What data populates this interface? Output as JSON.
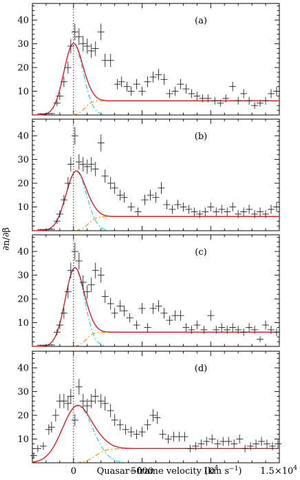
{
  "chart_data": {
    "type": "scatter",
    "x_label": "Quasar−frame velocity (km s",
    "x_label_sup": "−1",
    "x_label_close": ")",
    "y_label": "∂n/∂β",
    "x_range": [
      -3000,
      15000
    ],
    "y_range": [
      0,
      47
    ],
    "x_ticks": [
      {
        "value": 0,
        "label": "0"
      },
      {
        "value": 5000,
        "label": "5000"
      },
      {
        "value": 10000,
        "label": "10",
        "sup": "4"
      },
      {
        "value": 15000,
        "label": "1.5×10",
        "sup": "4"
      }
    ],
    "y_ticks": [
      10,
      20,
      30,
      40
    ],
    "colors": {
      "points": "#222222",
      "total_model": "#e41a1c",
      "gaussian": "#2ad4e6",
      "continuum": "#e8a010"
    },
    "panels": [
      {
        "label": "(a)",
        "model": {
          "amp": 30,
          "center": 0,
          "sigma": 700,
          "baseline": 6
        },
        "points": [
          {
            "x": -2400,
            "y": 0.5,
            "e": 0.3
          },
          {
            "x": -2000,
            "y": 0.5,
            "e": 0.3
          },
          {
            "x": -1600,
            "y": 0.6,
            "e": 0.3
          },
          {
            "x": -1200,
            "y": 5,
            "e": 1.2
          },
          {
            "x": -1000,
            "y": 8,
            "e": 1.6
          },
          {
            "x": -700,
            "y": 14,
            "e": 2.2
          },
          {
            "x": -400,
            "y": 20,
            "e": 2.6
          },
          {
            "x": -200,
            "y": 29,
            "e": 3.0
          },
          {
            "x": 100,
            "y": 35,
            "e": 3.5
          },
          {
            "x": 400,
            "y": 33,
            "e": 3.5
          },
          {
            "x": 700,
            "y": 30,
            "e": 3.3
          },
          {
            "x": 1000,
            "y": 29,
            "e": 3.2
          },
          {
            "x": 1300,
            "y": 27,
            "e": 3.0
          },
          {
            "x": 1600,
            "y": 28,
            "e": 3.1
          },
          {
            "x": 2000,
            "y": 35,
            "e": 3.5
          },
          {
            "x": 2300,
            "y": 23,
            "e": 2.8
          },
          {
            "x": 2700,
            "y": 23,
            "e": 2.8
          },
          {
            "x": 3200,
            "y": 13,
            "e": 2.2
          },
          {
            "x": 3500,
            "y": 14,
            "e": 2.2
          },
          {
            "x": 3900,
            "y": 12,
            "e": 2.0
          },
          {
            "x": 4200,
            "y": 10,
            "e": 1.9
          },
          {
            "x": 4600,
            "y": 13,
            "e": 2.2
          },
          {
            "x": 5000,
            "y": 10,
            "e": 1.9
          },
          {
            "x": 5400,
            "y": 14,
            "e": 2.2
          },
          {
            "x": 5800,
            "y": 16,
            "e": 2.3
          },
          {
            "x": 6200,
            "y": 17,
            "e": 2.4
          },
          {
            "x": 6600,
            "y": 15,
            "e": 2.3
          },
          {
            "x": 7000,
            "y": 9,
            "e": 1.9
          },
          {
            "x": 7400,
            "y": 10,
            "e": 1.9
          },
          {
            "x": 7800,
            "y": 13,
            "e": 2.2
          },
          {
            "x": 8200,
            "y": 11,
            "e": 2.0
          },
          {
            "x": 8600,
            "y": 9,
            "e": 1.9
          },
          {
            "x": 9000,
            "y": 8,
            "e": 1.8
          },
          {
            "x": 9400,
            "y": 7,
            "e": 1.7
          },
          {
            "x": 9800,
            "y": 7,
            "e": 1.7
          },
          {
            "x": 10300,
            "y": 6,
            "e": 1.6
          },
          {
            "x": 10700,
            "y": 5,
            "e": 1.5
          },
          {
            "x": 11100,
            "y": 7,
            "e": 1.7
          },
          {
            "x": 11600,
            "y": 12,
            "e": 2.0
          },
          {
            "x": 12000,
            "y": 6,
            "e": 1.6
          },
          {
            "x": 12400,
            "y": 9,
            "e": 1.9
          },
          {
            "x": 12800,
            "y": 6,
            "e": 1.6
          },
          {
            "x": 13200,
            "y": 4,
            "e": 1.4
          },
          {
            "x": 13600,
            "y": 5,
            "e": 1.5
          },
          {
            "x": 14000,
            "y": 6,
            "e": 1.6
          },
          {
            "x": 14400,
            "y": 9,
            "e": 1.9
          },
          {
            "x": 14800,
            "y": 10,
            "e": 1.9
          }
        ]
      },
      {
        "label": "(b)",
        "model": {
          "amp": 25,
          "center": 200,
          "sigma": 750,
          "baseline": 6
        },
        "points": [
          {
            "x": -2400,
            "y": 0.5,
            "e": 0.3
          },
          {
            "x": -2000,
            "y": 0.5,
            "e": 0.3
          },
          {
            "x": -1600,
            "y": 0.6,
            "e": 0.3
          },
          {
            "x": -1200,
            "y": 4,
            "e": 1.1
          },
          {
            "x": -1000,
            "y": 7,
            "e": 1.5
          },
          {
            "x": -700,
            "y": 13,
            "e": 2.1
          },
          {
            "x": -400,
            "y": 20,
            "e": 2.6
          },
          {
            "x": -200,
            "y": 28,
            "e": 3.0
          },
          {
            "x": 100,
            "y": 40,
            "e": 3.7
          },
          {
            "x": 400,
            "y": 29,
            "e": 3.2
          },
          {
            "x": 700,
            "y": 28,
            "e": 3.1
          },
          {
            "x": 1000,
            "y": 27,
            "e": 3.0
          },
          {
            "x": 1300,
            "y": 28,
            "e": 3.1
          },
          {
            "x": 1600,
            "y": 26,
            "e": 3.0
          },
          {
            "x": 2000,
            "y": 37,
            "e": 3.6
          },
          {
            "x": 2300,
            "y": 23,
            "e": 2.8
          },
          {
            "x": 2700,
            "y": 20,
            "e": 2.6
          },
          {
            "x": 3000,
            "y": 18,
            "e": 2.5
          },
          {
            "x": 3400,
            "y": 15,
            "e": 2.3
          },
          {
            "x": 3700,
            "y": 14,
            "e": 2.2
          },
          {
            "x": 4200,
            "y": 10,
            "e": 1.9
          },
          {
            "x": 4700,
            "y": 8,
            "e": 1.8
          },
          {
            "x": 5200,
            "y": 13,
            "e": 2.2
          },
          {
            "x": 5600,
            "y": 15,
            "e": 2.3
          },
          {
            "x": 6000,
            "y": 14,
            "e": 2.2
          },
          {
            "x": 6400,
            "y": 18,
            "e": 2.5
          },
          {
            "x": 6800,
            "y": 11,
            "e": 2.0
          },
          {
            "x": 7200,
            "y": 9,
            "e": 1.9
          },
          {
            "x": 7600,
            "y": 11,
            "e": 2.0
          },
          {
            "x": 8000,
            "y": 10,
            "e": 1.9
          },
          {
            "x": 8400,
            "y": 9,
            "e": 1.9
          },
          {
            "x": 8800,
            "y": 8,
            "e": 1.8
          },
          {
            "x": 9200,
            "y": 7,
            "e": 1.7
          },
          {
            "x": 9600,
            "y": 8,
            "e": 1.8
          },
          {
            "x": 10000,
            "y": 10,
            "e": 1.9
          },
          {
            "x": 10400,
            "y": 8,
            "e": 1.8
          },
          {
            "x": 10800,
            "y": 9,
            "e": 1.9
          },
          {
            "x": 11200,
            "y": 8,
            "e": 1.8
          },
          {
            "x": 11600,
            "y": 10,
            "e": 1.9
          },
          {
            "x": 12000,
            "y": 7,
            "e": 1.7
          },
          {
            "x": 12400,
            "y": 8,
            "e": 1.8
          },
          {
            "x": 12800,
            "y": 9,
            "e": 1.9
          },
          {
            "x": 13200,
            "y": 7,
            "e": 1.7
          },
          {
            "x": 13600,
            "y": 8,
            "e": 1.8
          },
          {
            "x": 14000,
            "y": 7,
            "e": 1.7
          },
          {
            "x": 14400,
            "y": 9,
            "e": 1.9
          },
          {
            "x": 14800,
            "y": 10,
            "e": 1.9
          }
        ]
      },
      {
        "label": "(c)",
        "model": {
          "amp": 33,
          "center": 100,
          "sigma": 700,
          "baseline": 6
        },
        "points": [
          {
            "x": -2400,
            "y": 0.5,
            "e": 0.3
          },
          {
            "x": -2000,
            "y": 0.5,
            "e": 0.3
          },
          {
            "x": -1600,
            "y": 0.6,
            "e": 0.3
          },
          {
            "x": -1200,
            "y": 6,
            "e": 1.3
          },
          {
            "x": -1000,
            "y": 9,
            "e": 1.7
          },
          {
            "x": -700,
            "y": 14,
            "e": 2.2
          },
          {
            "x": -400,
            "y": 23,
            "e": 2.8
          },
          {
            "x": -200,
            "y": 32,
            "e": 3.3
          },
          {
            "x": 100,
            "y": 40,
            "e": 3.7
          },
          {
            "x": 400,
            "y": 36,
            "e": 3.6
          },
          {
            "x": 700,
            "y": 27,
            "e": 3.0
          },
          {
            "x": 1000,
            "y": 23,
            "e": 2.8
          },
          {
            "x": 1300,
            "y": 26,
            "e": 3.0
          },
          {
            "x": 1600,
            "y": 32,
            "e": 3.3
          },
          {
            "x": 2000,
            "y": 30,
            "e": 3.2
          },
          {
            "x": 2300,
            "y": 21,
            "e": 2.7
          },
          {
            "x": 2700,
            "y": 18,
            "e": 2.5
          },
          {
            "x": 3000,
            "y": 14,
            "e": 2.2
          },
          {
            "x": 3400,
            "y": 17,
            "e": 2.4
          },
          {
            "x": 3700,
            "y": 15,
            "e": 2.3
          },
          {
            "x": 4100,
            "y": 12,
            "e": 2.0
          },
          {
            "x": 4600,
            "y": 9,
            "e": 1.9
          },
          {
            "x": 5000,
            "y": 16,
            "e": 2.3
          },
          {
            "x": 5400,
            "y": 8,
            "e": 1.8
          },
          {
            "x": 5800,
            "y": 16,
            "e": 2.3
          },
          {
            "x": 6200,
            "y": 17,
            "e": 2.4
          },
          {
            "x": 6600,
            "y": 14,
            "e": 2.2
          },
          {
            "x": 7000,
            "y": 11,
            "e": 2.0
          },
          {
            "x": 7400,
            "y": 13,
            "e": 2.2
          },
          {
            "x": 7800,
            "y": 13,
            "e": 2.2
          },
          {
            "x": 8200,
            "y": 8,
            "e": 1.8
          },
          {
            "x": 8600,
            "y": 7,
            "e": 1.7
          },
          {
            "x": 9000,
            "y": 9,
            "e": 1.9
          },
          {
            "x": 9500,
            "y": 7,
            "e": 1.7
          },
          {
            "x": 10000,
            "y": 13,
            "e": 2.2
          },
          {
            "x": 10400,
            "y": 7,
            "e": 1.7
          },
          {
            "x": 10800,
            "y": 8,
            "e": 1.8
          },
          {
            "x": 11200,
            "y": 7,
            "e": 1.7
          },
          {
            "x": 11600,
            "y": 8,
            "e": 1.8
          },
          {
            "x": 12000,
            "y": 7,
            "e": 1.7
          },
          {
            "x": 12400,
            "y": 6,
            "e": 1.6
          },
          {
            "x": 12800,
            "y": 8,
            "e": 1.8
          },
          {
            "x": 13200,
            "y": 7,
            "e": 1.7
          },
          {
            "x": 13600,
            "y": 3,
            "e": 1.2
          },
          {
            "x": 14000,
            "y": 9,
            "e": 1.9
          },
          {
            "x": 14400,
            "y": 7,
            "e": 1.7
          },
          {
            "x": 14800,
            "y": 6,
            "e": 1.6
          }
        ]
      },
      {
        "label": "(d)",
        "model": {
          "amp": 24,
          "center": 300,
          "sigma": 1100,
          "baseline": 6
        },
        "points": [
          {
            "x": -2900,
            "y": 3,
            "e": 1.2
          },
          {
            "x": -2600,
            "y": 6,
            "e": 1.5
          },
          {
            "x": -2200,
            "y": 7,
            "e": 1.6
          },
          {
            "x": -1800,
            "y": 14,
            "e": 2.2
          },
          {
            "x": -1600,
            "y": 15,
            "e": 2.3
          },
          {
            "x": -1300,
            "y": 20,
            "e": 2.6
          },
          {
            "x": -1000,
            "y": 26,
            "e": 3.0
          },
          {
            "x": -700,
            "y": 26,
            "e": 3.0
          },
          {
            "x": -400,
            "y": 25,
            "e": 3.0
          },
          {
            "x": -200,
            "y": 28,
            "e": 3.1
          },
          {
            "x": 100,
            "y": 18,
            "e": 2.5
          },
          {
            "x": 400,
            "y": 32,
            "e": 3.3
          },
          {
            "x": 700,
            "y": 26,
            "e": 3.0
          },
          {
            "x": 1000,
            "y": 24,
            "e": 2.9
          },
          {
            "x": 1300,
            "y": 26,
            "e": 3.0
          },
          {
            "x": 1600,
            "y": 28,
            "e": 3.1
          },
          {
            "x": 2000,
            "y": 26,
            "e": 3.0
          },
          {
            "x": 2300,
            "y": 25,
            "e": 3.0
          },
          {
            "x": 2700,
            "y": 22,
            "e": 2.8
          },
          {
            "x": 3000,
            "y": 18,
            "e": 2.5
          },
          {
            "x": 3400,
            "y": 16,
            "e": 2.3
          },
          {
            "x": 3800,
            "y": 14,
            "e": 2.2
          },
          {
            "x": 4200,
            "y": 13,
            "e": 2.2
          },
          {
            "x": 4600,
            "y": 12,
            "e": 2.0
          },
          {
            "x": 5000,
            "y": 13,
            "e": 2.2
          },
          {
            "x": 5400,
            "y": 16,
            "e": 2.3
          },
          {
            "x": 5800,
            "y": 20,
            "e": 2.6
          },
          {
            "x": 6100,
            "y": 19,
            "e": 2.6
          },
          {
            "x": 6500,
            "y": 12,
            "e": 2.0
          },
          {
            "x": 6900,
            "y": 10,
            "e": 1.9
          },
          {
            "x": 7300,
            "y": 11,
            "e": 2.0
          },
          {
            "x": 7700,
            "y": 11,
            "e": 2.0
          },
          {
            "x": 8100,
            "y": 11,
            "e": 2.0
          },
          {
            "x": 8500,
            "y": 6,
            "e": 1.6
          },
          {
            "x": 8900,
            "y": 7,
            "e": 1.7
          },
          {
            "x": 9300,
            "y": 8,
            "e": 1.8
          },
          {
            "x": 9700,
            "y": 9,
            "e": 1.9
          },
          {
            "x": 10100,
            "y": 10,
            "e": 1.9
          },
          {
            "x": 10500,
            "y": 8,
            "e": 1.8
          },
          {
            "x": 10900,
            "y": 9,
            "e": 1.9
          },
          {
            "x": 11300,
            "y": 9,
            "e": 1.9
          },
          {
            "x": 11700,
            "y": 8,
            "e": 1.8
          },
          {
            "x": 12100,
            "y": 10,
            "e": 1.9
          },
          {
            "x": 12500,
            "y": 6,
            "e": 1.6
          },
          {
            "x": 12900,
            "y": 7,
            "e": 1.7
          },
          {
            "x": 13300,
            "y": 8,
            "e": 1.8
          },
          {
            "x": 13700,
            "y": 9,
            "e": 1.9
          },
          {
            "x": 14100,
            "y": 8,
            "e": 1.8
          },
          {
            "x": 14500,
            "y": 7,
            "e": 1.7
          },
          {
            "x": 14900,
            "y": 8,
            "e": 1.8
          }
        ]
      }
    ]
  }
}
